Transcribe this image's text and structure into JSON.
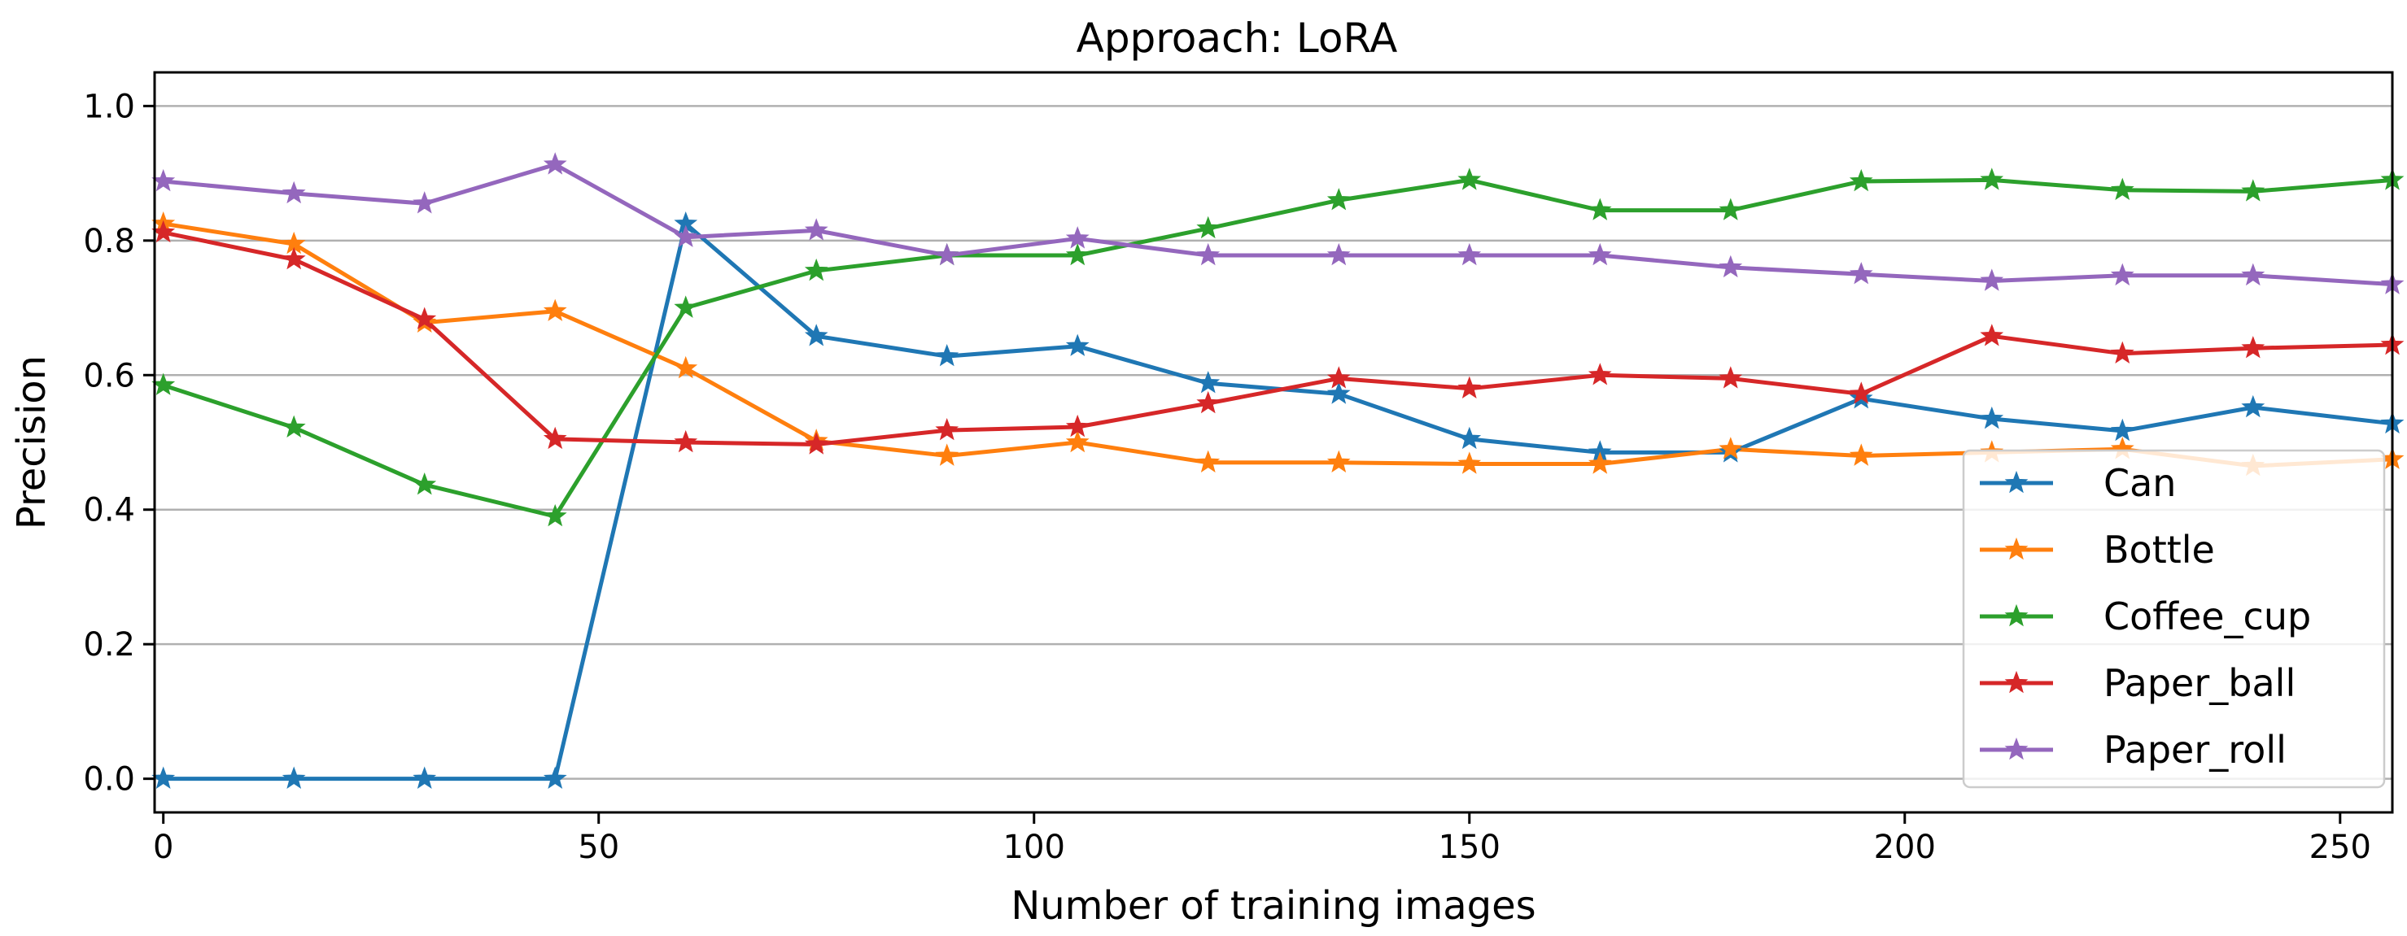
{
  "chart_data": {
    "type": "line",
    "title": "Approach: LoRA",
    "xlabel": "Number of training images",
    "ylabel": "Precision",
    "xlim": [
      -1,
      256
    ],
    "ylim": [
      -0.05,
      1.05
    ],
    "xticks": [
      0,
      50,
      100,
      150,
      200,
      250
    ],
    "yticks": [
      0.0,
      0.2,
      0.4,
      0.6,
      0.8,
      1.0
    ],
    "xtick_labels": [
      "0",
      "50",
      "100",
      "150",
      "200",
      "250"
    ],
    "ytick_labels": [
      "0.0",
      "0.2",
      "0.4",
      "0.6",
      "0.8",
      "1.0"
    ],
    "grid": "horizontal",
    "legend_position": "lower-right",
    "marker": "star",
    "x": [
      0,
      15,
      30,
      45,
      60,
      75,
      90,
      105,
      120,
      135,
      150,
      165,
      180,
      195,
      210,
      225,
      240,
      256
    ],
    "series": [
      {
        "name": "Can",
        "color": "#1f77b4",
        "values": [
          0.0,
          0.0,
          0.0,
          0.0,
          0.825,
          0.658,
          0.628,
          0.643,
          0.588,
          0.572,
          0.505,
          0.485,
          0.485,
          0.565,
          0.535,
          0.517,
          0.552,
          0.528
        ]
      },
      {
        "name": "Bottle",
        "color": "#ff7f0e",
        "values": [
          0.825,
          0.795,
          0.678,
          0.695,
          0.61,
          0.502,
          0.48,
          0.5,
          0.47,
          0.47,
          0.468,
          0.468,
          0.49,
          0.48,
          0.485,
          0.49,
          0.465,
          0.475
        ]
      },
      {
        "name": "Coffee_cup",
        "color": "#2ca02c",
        "values": [
          0.585,
          0.522,
          0.437,
          0.39,
          0.7,
          0.755,
          0.778,
          0.778,
          0.818,
          0.86,
          0.89,
          0.845,
          0.845,
          0.888,
          0.89,
          0.875,
          0.873,
          0.89
        ]
      },
      {
        "name": "Paper_ball",
        "color": "#d62728",
        "values": [
          0.812,
          0.772,
          0.683,
          0.505,
          0.5,
          0.497,
          0.518,
          0.523,
          0.558,
          0.595,
          0.58,
          0.6,
          0.595,
          0.572,
          0.658,
          0.632,
          0.64,
          0.645
        ]
      },
      {
        "name": "Paper_roll",
        "color": "#9467bd",
        "values": [
          0.888,
          0.87,
          0.855,
          0.913,
          0.805,
          0.815,
          0.778,
          0.803,
          0.778,
          0.778,
          0.778,
          0.778,
          0.76,
          0.75,
          0.74,
          0.748,
          0.748,
          0.735
        ]
      }
    ]
  }
}
